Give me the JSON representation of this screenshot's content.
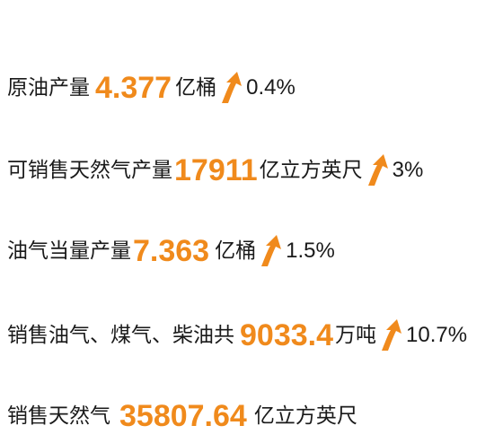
{
  "rows": [
    {
      "label": "原油产量",
      "value": "4.377",
      "unit": "亿桶",
      "change": "0.4%"
    },
    {
      "label": "可销售天然气产量",
      "value": "17911",
      "unit": "亿立方英尺",
      "change": "3%"
    },
    {
      "label": "油气当量产量",
      "value": "7.363",
      "unit": "亿桶",
      "change": "1.5%"
    },
    {
      "label": "销售油气、煤气、柴油共",
      "value": "9033.4",
      "unit": "万吨",
      "change": "10.7%"
    },
    {
      "label": "销售天然气",
      "value": "35807.64",
      "unit": "亿立方英尺"
    }
  ],
  "colors": {
    "accent": "#f08a1c",
    "text": "#1a1a1a"
  },
  "icons": {
    "arrow": "curved-up-arrow-icon"
  }
}
